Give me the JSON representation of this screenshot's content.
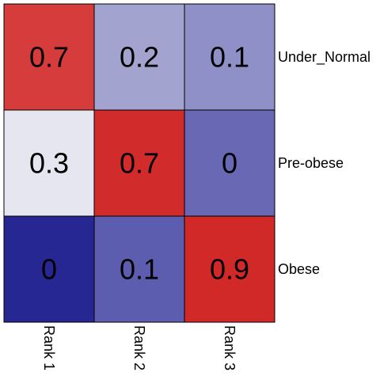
{
  "chart_data": {
    "type": "heatmap",
    "title": "",
    "xlabel": "",
    "ylabel": "",
    "x_categories": [
      "Rank 1",
      "Rank 2",
      "Rank 3"
    ],
    "y_categories": [
      "Under_Normal",
      "Pre-obese",
      "Obese"
    ],
    "values": [
      [
        0.7,
        0.2,
        0.1
      ],
      [
        0.3,
        0.7,
        0.0
      ],
      [
        0.0,
        0.1,
        0.9
      ]
    ],
    "cell_labels": [
      [
        "0.7",
        "0.2",
        "0.1"
      ],
      [
        "0.3",
        "0.7",
        "0"
      ],
      [
        "0",
        "0.1",
        "0.9"
      ]
    ],
    "cell_colors": [
      [
        "#d63c3c",
        "#a3a3d0",
        "#9090c8"
      ],
      [
        "#e6e6f0",
        "#d12b2b",
        "#6868b4"
      ],
      [
        "#272793",
        "#5d5db0",
        "#d12828"
      ]
    ],
    "grid": false,
    "legend": "none"
  }
}
